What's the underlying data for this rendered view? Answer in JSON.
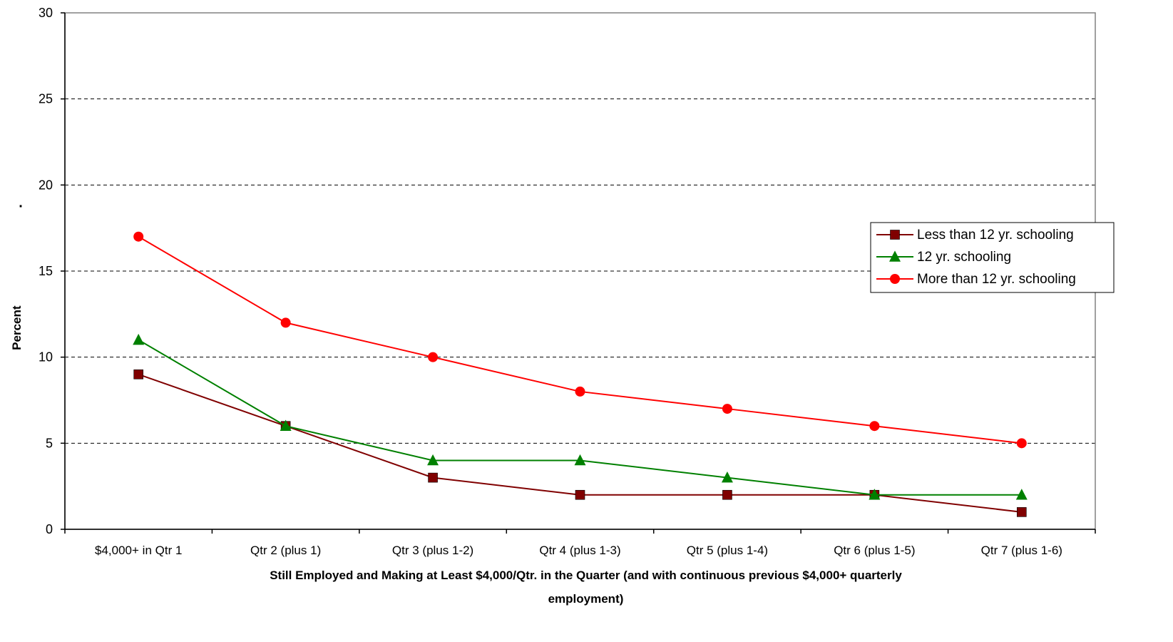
{
  "chart_data": {
    "type": "line",
    "title": "",
    "xlabel": "Still Employed and Making at Least $4,000/Qtr. in the Quarter (and with continuous previous $4,000+ quarterly employment)",
    "xlabel_lines": [
      "Still Employed and Making at Least $4,000/Qtr. in the Quarter (and with continuous previous $4,000+ quarterly",
      "employment)"
    ],
    "ylabel": "Percent",
    "y_marker": ".",
    "ylim": [
      0,
      30
    ],
    "yticks": [
      0,
      5,
      10,
      15,
      20,
      25,
      30
    ],
    "grid": "horizontal dashed",
    "legend_position": "right",
    "categories": [
      "$4,000+ in Qtr 1",
      "Qtr 2 (plus 1)",
      "Qtr 3 (plus 1-2)",
      "Qtr 4 (plus 1-3)",
      "Qtr 5 (plus 1-4)",
      "Qtr 6 (plus 1-5)",
      "Qtr 7 (plus 1-6)"
    ],
    "series": [
      {
        "name": "Less than 12 yr. schooling",
        "color": "#800000",
        "marker": "square",
        "values": [
          9,
          6,
          3,
          2,
          2,
          2,
          1
        ]
      },
      {
        "name": "12 yr. schooling",
        "color": "#008000",
        "marker": "triangle",
        "values": [
          11,
          6,
          4,
          4,
          3,
          2,
          2
        ]
      },
      {
        "name": "More than 12 yr. schooling",
        "color": "#ff0000",
        "marker": "circle",
        "values": [
          17,
          12,
          10,
          8,
          7,
          6,
          5
        ]
      }
    ]
  }
}
